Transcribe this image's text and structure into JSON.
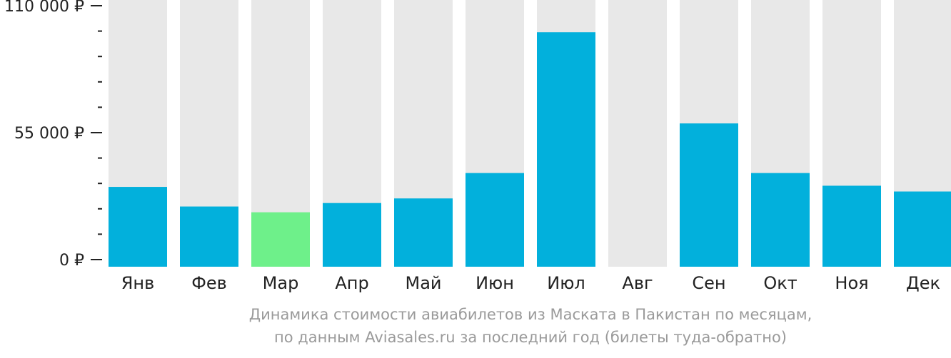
{
  "chart_data": {
    "type": "bar",
    "categories": [
      "Янв",
      "Фев",
      "Мар",
      "Апр",
      "Май",
      "Июн",
      "Июл",
      "Авг",
      "Сен",
      "Окт",
      "Ноя",
      "Дек"
    ],
    "values": [
      31500,
      23000,
      20500,
      24500,
      26500,
      37500,
      98500,
      0,
      59000,
      37500,
      32000,
      29500
    ],
    "ylim": [
      0,
      110000
    ],
    "yticks": [
      {
        "value": 110000,
        "label": "110 000 ₽"
      },
      {
        "value": 55000,
        "label": "55 000 ₽"
      },
      {
        "value": 0,
        "label": "0 ₽"
      }
    ],
    "minor_tick_step": 11000,
    "highlight_index": 2,
    "colors": {
      "bar": "#02b0dc",
      "highlight": "#6ef08a",
      "background_bar": "#e8e8e8",
      "axis": "#222222",
      "caption": "#9a9a9a"
    },
    "caption_line1": "Динамика стоимости авиабилетов из Маската в Пакистан по месяцам,",
    "caption_line2": "по данным Aviasales.ru за последний год (билеты туда-обратно)"
  }
}
